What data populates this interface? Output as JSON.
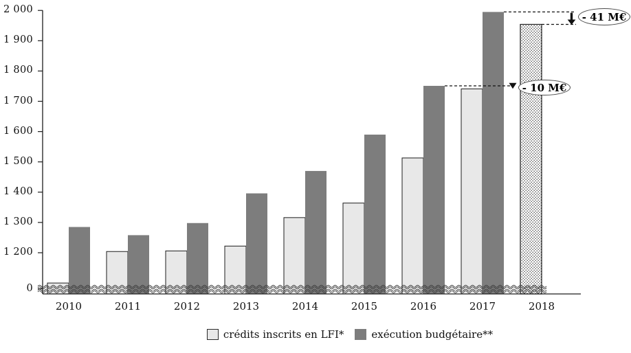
{
  "chart_data": {
    "type": "bar",
    "title": "",
    "xlabel": "",
    "ylabel": "",
    "categories": [
      "2010",
      "2011",
      "2012",
      "2013",
      "2014",
      "2015",
      "2016",
      "2017",
      "2018"
    ],
    "series": [
      {
        "name": "crédits inscrits en LFI*",
        "color": "#e8e8e8",
        "border_color": "#1c1c1c",
        "last_bar_pattern": "dotted",
        "values": [
          1100,
          1204,
          1206,
          1222,
          1316,
          1364,
          1513,
          1741,
          1954
        ]
      },
      {
        "name": "exécution budgétaire**",
        "color": "#7d7d7d",
        "values": [
          1285,
          1258,
          1298,
          1396,
          1470,
          1590,
          1751,
          1995,
          null
        ]
      }
    ],
    "y_axis": {
      "tick_labels": [
        "2 000",
        "1 900",
        "1 800",
        "1 700",
        "1 600",
        "1 500",
        "1 400",
        "1 300",
        "1 200",
        "0"
      ],
      "tick_values": [
        2000,
        1900,
        1800,
        1700,
        1600,
        1500,
        1400,
        1300,
        1200,
        0
      ],
      "ylim": [
        0,
        2000
      ],
      "axis_break": true,
      "grid": false
    },
    "legend_position": "bottom",
    "annotations": [
      {
        "label": "- 41 M€"
      },
      {
        "label": "- 10 M€"
      }
    ]
  }
}
